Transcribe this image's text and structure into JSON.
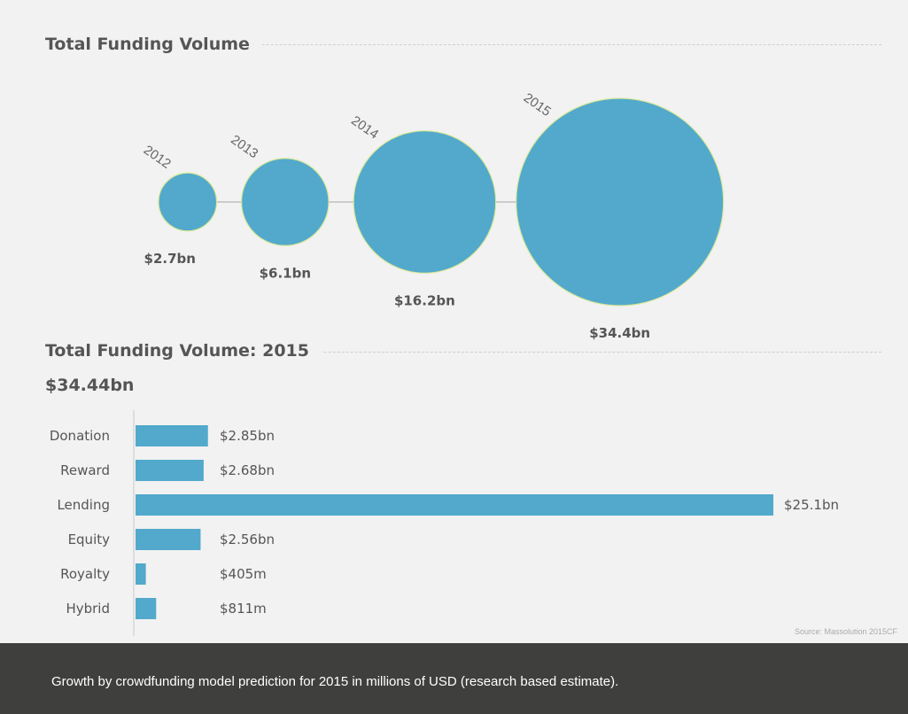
{
  "colors": {
    "accent": "#52a9cb",
    "text": "#555555",
    "background": "#f2f2f2",
    "caption_bg": "#3f3f3d"
  },
  "chart_data": [
    {
      "type": "bubble",
      "title": "Total Funding Volume",
      "categories": [
        "2012",
        "2013",
        "2014",
        "2015"
      ],
      "values": [
        2.7,
        6.1,
        16.2,
        34.4
      ],
      "unit": "bn USD",
      "value_labels": [
        "$2.7bn",
        "$6.1bn",
        "$16.2bn",
        "$34.4bn"
      ]
    },
    {
      "type": "bar",
      "orientation": "horizontal",
      "title": "Total Funding Volume: 2015",
      "subtitle": "$34.44bn",
      "categories": [
        "Donation",
        "Reward",
        "Lending",
        "Equity",
        "Royalty",
        "Hybrid"
      ],
      "values": [
        2850,
        2680,
        25100,
        2560,
        405,
        811
      ],
      "unit": "millions USD",
      "value_labels": [
        "$2.85bn",
        "$2.68bn",
        "$25.1bn",
        "$2.56bn",
        "$405m",
        "$811m"
      ],
      "xlim": [
        0,
        25100
      ],
      "grid": false,
      "source": "Source: Massolution 2015CF"
    }
  ],
  "caption": "Growth by crowdfunding model prediction for 2015 in millions of USD (research based estimate)."
}
